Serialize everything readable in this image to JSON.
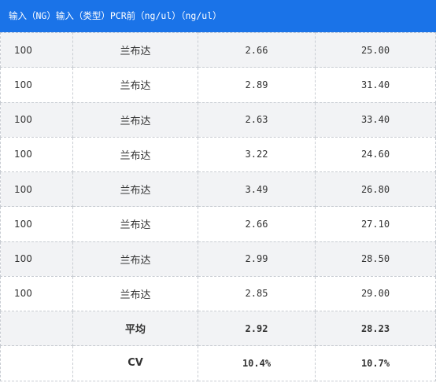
{
  "header": {
    "text": "输入（NG）输入（类型）PCR前（ng/ul）（ng/ul）"
  },
  "rows": [
    {
      "ng": "100",
      "type": "兰布达",
      "pcr": "2.66",
      "conc": "25.00"
    },
    {
      "ng": "100",
      "type": "兰布达",
      "pcr": "2.89",
      "conc": "31.40"
    },
    {
      "ng": "100",
      "type": "兰布达",
      "pcr": "2.63",
      "conc": "33.40"
    },
    {
      "ng": "100",
      "type": "兰布达",
      "pcr": "3.22",
      "conc": "24.60"
    },
    {
      "ng": "100",
      "type": "兰布达",
      "pcr": "3.49",
      "conc": "26.80"
    },
    {
      "ng": "100",
      "type": "兰布达",
      "pcr": "2.66",
      "conc": "27.10"
    },
    {
      "ng": "100",
      "type": "兰布达",
      "pcr": "2.99",
      "conc": "28.50"
    },
    {
      "ng": "100",
      "type": "兰布达",
      "pcr": "2.85",
      "conc": "29.00"
    }
  ],
  "summary": [
    {
      "label": "平均",
      "pcr": "2.92",
      "conc": "28.23"
    },
    {
      "label": "CV",
      "pcr": "10.4%",
      "conc": "10.7%"
    }
  ]
}
